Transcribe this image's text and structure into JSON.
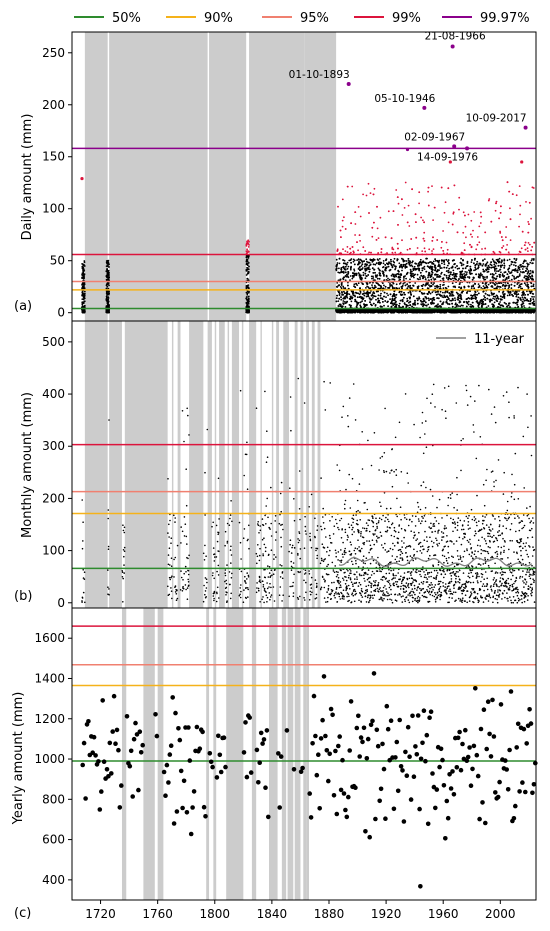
{
  "chart_data": {
    "type": "scatter",
    "legend": {
      "placement": "top",
      "items": [
        {
          "label": "50%",
          "color": "#2e8b2e"
        },
        {
          "label": "90%",
          "color": "#f5b21a"
        },
        {
          "label": "95%",
          "color": "#f08070"
        },
        {
          "label": "99%",
          "color": "#dc143c"
        },
        {
          "label": "99.97%",
          "color": "#8b008b"
        }
      ]
    },
    "x_ticks": [
      "1720",
      "1760",
      "1800",
      "1840",
      "1880",
      "1920",
      "1960",
      "2000"
    ],
    "x_tick_values": [
      1720,
      1760,
      1800,
      1840,
      1880,
      1920,
      1960,
      2000
    ],
    "xlim": [
      1700,
      2025
    ],
    "panels": [
      {
        "id": "a",
        "label": "(a)",
        "ylabel": "Daily amount (mm)",
        "ylim": [
          -8,
          270
        ],
        "yticks": [
          0,
          50,
          100,
          150,
          200,
          250
        ],
        "thresholds": [
          {
            "name": "50%",
            "value": 4,
            "color": "#2e8b2e"
          },
          {
            "name": "90%",
            "value": 22,
            "color": "#f5b21a"
          },
          {
            "name": "95%",
            "value": 30,
            "color": "#f08070"
          },
          {
            "name": "99%",
            "value": 56,
            "color": "#dc143c"
          },
          {
            "name": "99.97%",
            "value": 158,
            "color": "#8b008b"
          }
        ],
        "gaps": [
          [
            1709,
            1725
          ],
          [
            1726,
            1795
          ],
          [
            1796,
            1822
          ],
          [
            1824,
            1863
          ],
          [
            1863,
            1885
          ]
        ],
        "extremes": [
          {
            "date": "21-08-1966",
            "x": 1966.6,
            "value": 256
          },
          {
            "date": "01-10-1893",
            "x": 1893.8,
            "value": 220
          },
          {
            "date": "05-10-1946",
            "x": 1946.8,
            "value": 197
          },
          {
            "date": "10-09-2017",
            "x": 2017.7,
            "value": 178
          },
          {
            "date": "02-09-1967",
            "x": 1967.7,
            "value": 160
          },
          {
            "date": "14-09-1976",
            "x": 1976.7,
            "value": 158
          }
        ],
        "extra_points": [
          {
            "x": 1707,
            "value": 129,
            "color": "#dc143c"
          },
          {
            "x": 1935,
            "value": 157,
            "color": "#8b008b"
          },
          {
            "x": 1965,
            "value": 145,
            "color": "#dc143c"
          },
          {
            "x": 2015,
            "value": 145,
            "color": "#dc143c"
          }
        ]
      },
      {
        "id": "b",
        "label": "(b)",
        "ylabel": "Monthly amount (mm)",
        "ylim": [
          -10,
          540
        ],
        "yticks": [
          0,
          100,
          200,
          300,
          400,
          500
        ],
        "legend_label": "11-year",
        "thresholds": [
          {
            "name": "50%",
            "value": 66,
            "color": "#2e8b2e"
          },
          {
            "name": "90%",
            "value": 171,
            "color": "#f5b21a"
          },
          {
            "name": "95%",
            "value": 213,
            "color": "#f08070"
          },
          {
            "name": "99%",
            "value": 303,
            "color": "#dc143c"
          }
        ],
        "gaps": [
          [
            1709,
            1725
          ],
          [
            1726,
            1735
          ],
          [
            1737,
            1767
          ],
          [
            1770,
            1771
          ],
          [
            1774,
            1776
          ],
          [
            1782,
            1792
          ],
          [
            1795,
            1798
          ],
          [
            1800,
            1801
          ],
          [
            1803,
            1807
          ],
          [
            1809,
            1810
          ],
          [
            1812,
            1817
          ],
          [
            1819,
            1820
          ],
          [
            1824,
            1829
          ],
          [
            1832,
            1833
          ],
          [
            1840,
            1841
          ],
          [
            1843,
            1845
          ],
          [
            1848,
            1852
          ],
          [
            1856,
            1858
          ],
          [
            1860,
            1862
          ],
          [
            1864,
            1866
          ],
          [
            1868,
            1870
          ],
          [
            1872,
            1874
          ]
        ]
      },
      {
        "id": "c",
        "label": "(c)",
        "ylabel": "Yearly amount (mm)",
        "ylim": [
          300,
          1750
        ],
        "yticks": [
          400,
          600,
          800,
          1000,
          1200,
          1400,
          1600
        ],
        "thresholds": [
          {
            "name": "50%",
            "value": 990,
            "color": "#2e8b2e"
          },
          {
            "name": "90%",
            "value": 1365,
            "color": "#f5b21a"
          },
          {
            "name": "95%",
            "value": 1468,
            "color": "#f08070"
          },
          {
            "name": "99%",
            "value": 1660,
            "color": "#dc143c"
          }
        ],
        "gaps": [
          [
            1735,
            1738
          ],
          [
            1750,
            1758
          ],
          [
            1760,
            1764
          ],
          [
            1794,
            1796
          ],
          [
            1799,
            1801
          ],
          [
            1808,
            1820
          ],
          [
            1826,
            1829
          ],
          [
            1838,
            1844
          ],
          [
            1847,
            1850
          ],
          [
            1851,
            1855
          ],
          [
            1856,
            1860
          ],
          [
            1862,
            1864
          ],
          [
            1864,
            1866
          ]
        ]
      }
    ]
  }
}
